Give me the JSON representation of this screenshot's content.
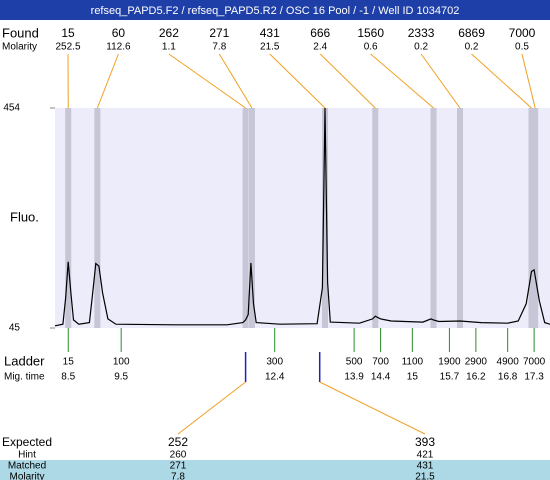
{
  "chart_data": {
    "type": "electropherogram",
    "title": "refseq_PAPD5.F2 / refseq_PAPD5.R2 / OSC 16 Pool / -1 / Well ID 1034702",
    "y_label": "Fluo.",
    "ylim": [
      45,
      454
    ],
    "yticks": [
      45,
      454
    ],
    "xlim": [
      8.25,
      17.6
    ],
    "found_label": "Found",
    "found_molarity_label": "Molarity",
    "found": [
      15,
      60,
      262,
      271,
      431,
      666,
      1560,
      2333,
      6869,
      7000
    ],
    "found_molarity": [
      252.5,
      112.6,
      1.1,
      7.8,
      21.5,
      2.4,
      0.6,
      0.2,
      0.2,
      0.5
    ],
    "found_time": [
      8.5,
      9.05,
      11.85,
      11.97,
      13.35,
      14.3,
      15.4,
      15.9,
      17.25,
      17.32
    ],
    "ladder_label": "Ladder",
    "mig_time_label": "Mig. time",
    "ladder": [
      15,
      100,
      300,
      500,
      700,
      1100,
      1900,
      2900,
      4900,
      7000
    ],
    "ladder_time": [
      8.5,
      9.5,
      12.4,
      13.9,
      14.4,
      15,
      15.7,
      16.2,
      16.8,
      17.3
    ],
    "trace": {
      "color": "#000000",
      "x": [
        8.25,
        8.4,
        8.45,
        8.5,
        8.55,
        8.6,
        8.7,
        8.9,
        8.95,
        9.02,
        9.08,
        9.15,
        9.25,
        9.4,
        10.5,
        11.5,
        11.8,
        11.85,
        11.9,
        11.95,
        12.0,
        12.05,
        12.5,
        13.2,
        13.3,
        13.35,
        13.4,
        13.45,
        14.0,
        14.25,
        14.3,
        14.4,
        14.6,
        15.2,
        15.35,
        15.4,
        15.5,
        15.9,
        16.3,
        16.8,
        17.0,
        17.15,
        17.25,
        17.3,
        17.4,
        17.5,
        17.6
      ],
      "values": [
        49,
        52,
        100,
        168,
        110,
        60,
        52,
        55,
        100,
        165,
        160,
        110,
        62,
        52,
        51,
        51,
        55,
        60,
        70,
        166,
        90,
        55,
        52,
        53,
        120,
        454,
        130,
        56,
        54,
        62,
        67,
        62,
        58,
        56,
        62,
        60,
        57,
        58,
        55,
        54,
        58,
        90,
        150,
        153,
        95,
        55,
        52
      ]
    },
    "expected": {
      "row_labels": [
        "Expected",
        "Hint",
        "Matched",
        "Molarity"
      ],
      "time": [
        11.85,
        13.25
      ],
      "rows": [
        [
          252,
          393
        ],
        [
          260,
          421
        ],
        [
          271,
          431
        ],
        [
          7.8,
          21.5
        ]
      ]
    }
  }
}
